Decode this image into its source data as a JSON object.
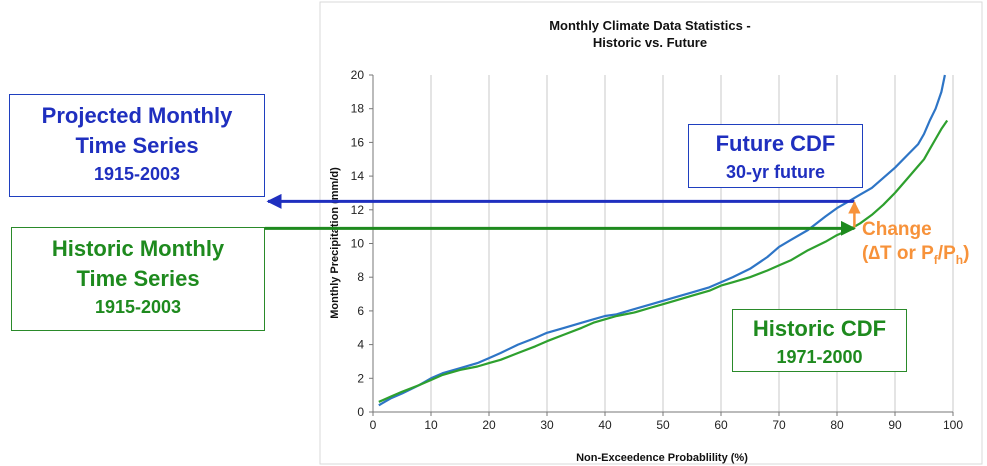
{
  "chart_data": {
    "type": "line",
    "title": [
      "Monthly Climate Data Statistics -",
      "Historic vs. Future"
    ],
    "xlabel": "Non-Exceedence Probablility (%)",
    "ylabel": "Monthly Precipitation (mm/d)",
    "xlim": [
      0,
      100
    ],
    "ylim": [
      0,
      20
    ],
    "xticks": [
      0,
      10,
      20,
      30,
      40,
      50,
      60,
      70,
      80,
      90,
      100
    ],
    "yticks": [
      0,
      2,
      4,
      6,
      8,
      10,
      12,
      14,
      16,
      18,
      20
    ],
    "grid": "vertical",
    "series": [
      {
        "name": "",
        "color": "#2e75c6",
        "x": [
          1,
          3,
          5,
          8,
          10,
          12,
          15,
          18,
          20,
          22,
          25,
          28,
          30,
          33,
          36,
          38,
          40,
          42,
          45,
          48,
          50,
          52,
          55,
          58,
          60,
          62,
          65,
          68,
          70,
          72,
          75,
          78,
          80,
          82,
          84,
          86,
          88,
          90,
          92,
          94,
          95,
          96,
          97,
          98,
          98.6
        ],
        "y": [
          0.4,
          0.8,
          1.1,
          1.6,
          2.0,
          2.3,
          2.6,
          2.9,
          3.2,
          3.5,
          4.0,
          4.4,
          4.7,
          5.0,
          5.3,
          5.5,
          5.7,
          5.8,
          6.1,
          6.4,
          6.6,
          6.8,
          7.1,
          7.4,
          7.7,
          8.0,
          8.5,
          9.2,
          9.8,
          10.2,
          10.8,
          11.6,
          12.1,
          12.5,
          12.9,
          13.3,
          13.9,
          14.5,
          15.2,
          15.9,
          16.5,
          17.3,
          18.0,
          19.0,
          20.0
        ]
      },
      {
        "name": "",
        "color": "#2ea02e",
        "x": [
          1,
          3,
          5,
          8,
          10,
          12,
          15,
          18,
          20,
          22,
          25,
          28,
          30,
          33,
          36,
          38,
          40,
          42,
          45,
          48,
          50,
          52,
          55,
          58,
          60,
          62,
          65,
          68,
          70,
          72,
          75,
          78,
          80,
          82,
          84,
          86,
          88,
          90,
          92,
          94,
          95,
          96,
          97,
          98,
          99
        ],
        "y": [
          0.6,
          0.9,
          1.2,
          1.6,
          1.9,
          2.2,
          2.5,
          2.7,
          2.9,
          3.1,
          3.5,
          3.9,
          4.2,
          4.6,
          5.0,
          5.3,
          5.5,
          5.7,
          5.9,
          6.2,
          6.4,
          6.6,
          6.9,
          7.2,
          7.5,
          7.7,
          8.0,
          8.4,
          8.7,
          9.0,
          9.6,
          10.1,
          10.5,
          10.8,
          11.2,
          11.7,
          12.3,
          13.0,
          13.8,
          14.6,
          15.0,
          15.6,
          16.2,
          16.8,
          17.3
        ]
      }
    ]
  },
  "boxes": {
    "projected": {
      "line1": "Projected Monthly",
      "line2": "Time Series",
      "line3": "1915-2003"
    },
    "historic_ts": {
      "line1": "Historic Monthly",
      "line2": "Time Series",
      "line3": "1915-2003"
    },
    "future_cdf": {
      "line1": "Future CDF",
      "line2": "30-yr future"
    },
    "historic_cdf": {
      "line1": "Historic CDF",
      "line2": "1971-2000"
    }
  },
  "annotation": {
    "change_line1": "Change",
    "change_line2_pre": "(∆T or P",
    "change_sub1": "f",
    "change_mid": "/P",
    "change_sub2": "h",
    "change_end": ")",
    "color": "#f7923a",
    "x": 83,
    "y_future": 12.5,
    "y_historic": 10.9
  },
  "arrows": {
    "blue_color": "#1f2fbf",
    "green_color": "#1e8a1e"
  }
}
